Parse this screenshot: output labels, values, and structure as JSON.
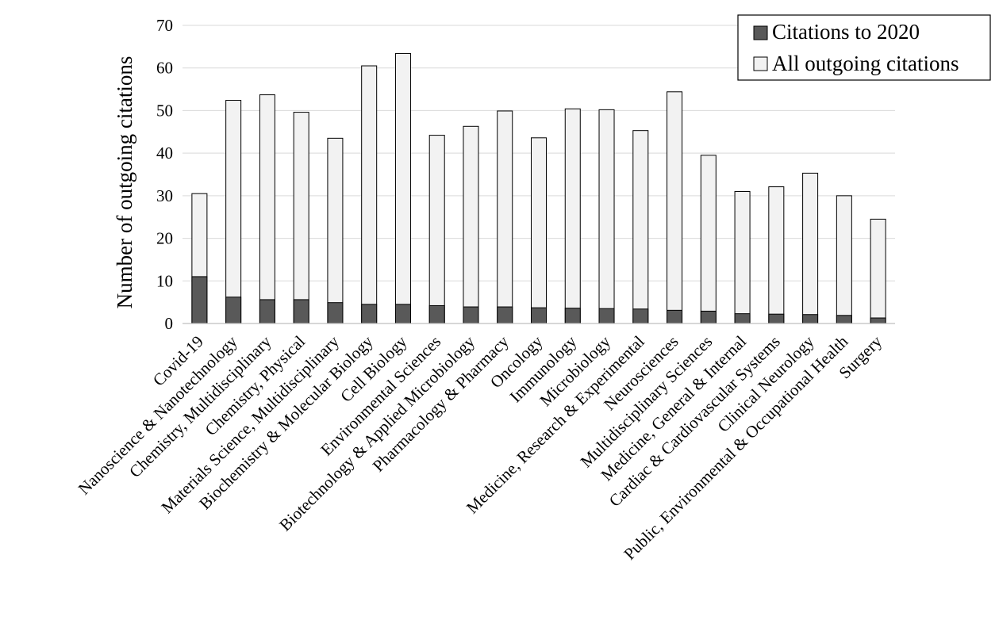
{
  "chart_data": {
    "type": "bar",
    "stacked": true,
    "categories": [
      "Covid-19",
      "Nanoscience & Nanotechnology",
      "Chemistry, Multidisciplinary",
      "Chemistry, Physical",
      "Materials Science, Multidisciplinary",
      "Biochemistry & Molecular Biology",
      "Cell Biology",
      "Environmental Sciences",
      "Biotechnology & Applied Microbiology",
      "Pharmacology & Pharmacy",
      "Oncology",
      "Immunology",
      "Microbiology",
      "Medicine, Research & Experimental",
      "Neurosciences",
      "Multidisciplinary Sciences",
      "Medicine, General & Internal",
      "Cardiac & Cardiovascular Systems",
      "Clinical Neurology",
      "Public, Environmental & Occupational Health",
      "Surgery"
    ],
    "series": [
      {
        "name": "Citations to 2020",
        "color": "#595959",
        "values": [
          11.0,
          6.2,
          5.6,
          5.6,
          4.9,
          4.5,
          4.5,
          4.2,
          3.9,
          3.9,
          3.7,
          3.6,
          3.5,
          3.4,
          3.1,
          2.9,
          2.3,
          2.2,
          2.1,
          1.9,
          1.3
        ]
      },
      {
        "name": "All outgoing citations",
        "color": "#f2f2f2",
        "values": [
          30.5,
          52.4,
          53.7,
          49.6,
          43.5,
          60.5,
          63.4,
          44.2,
          46.3,
          49.9,
          43.6,
          50.4,
          50.2,
          45.3,
          54.4,
          39.5,
          31.0,
          32.1,
          35.3,
          30.0,
          24.5
        ]
      }
    ],
    "ylabel": "Number of outgoing citations",
    "ylim": [
      0,
      70
    ],
    "yticks": [
      0,
      10,
      20,
      30,
      40,
      50,
      60,
      70
    ],
    "grid": true,
    "legend_position": "top-right"
  }
}
